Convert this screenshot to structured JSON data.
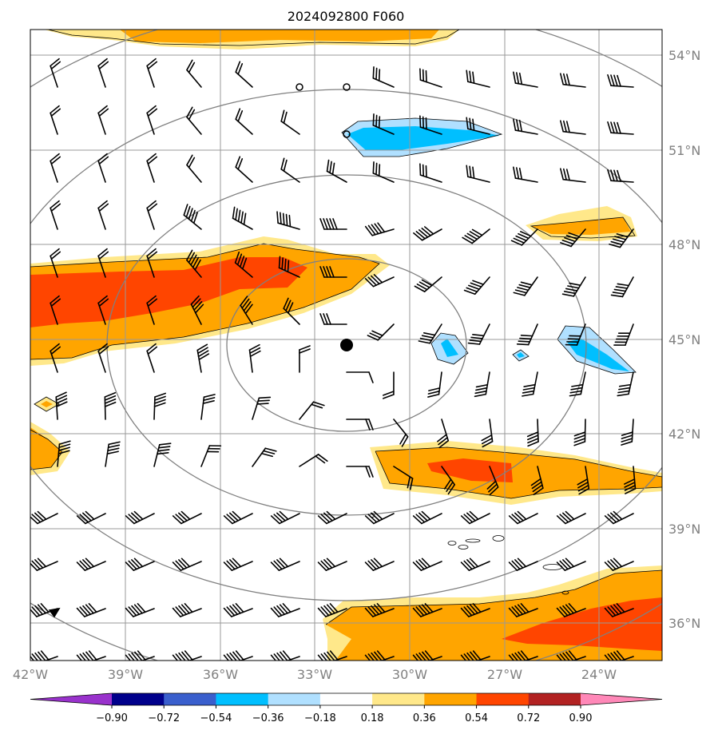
{
  "title": "2024092800 F060",
  "longitude_labels": [
    "42°W",
    "39°W",
    "36°W",
    "33°W",
    "30°W",
    "27°W",
    "24°W"
  ],
  "latitude_labels": [
    "54°N",
    "51°N",
    "48°N",
    "45°N",
    "42°N",
    "39°N",
    "36°N"
  ],
  "colorbar": {
    "tick_labels": [
      "−0.90",
      "−0.72",
      "−0.54",
      "−0.36",
      "−0.18",
      "0.18",
      "0.36",
      "0.54",
      "0.72",
      "0.90"
    ],
    "colors": [
      "#9932cc",
      "#00008b",
      "#3a5fcd",
      "#00bfff",
      "#b0e0ff",
      "#ffffff",
      "#ffe88a",
      "#ffa500",
      "#ff4500",
      "#b22222",
      "#ff88b8"
    ]
  },
  "colors": {
    "positive_1": "#ffe88a",
    "positive_2": "#ffa500",
    "positive_3": "#ff4500",
    "negative_1": "#b0e0ff",
    "negative_2": "#00bfff",
    "gridline": "#999999",
    "range_ring": "#808080"
  },
  "map": {
    "lon_range": [
      -42,
      -22
    ],
    "lat_range": [
      35,
      55
    ],
    "center_marker": {
      "lon": -32,
      "lat": 45
    },
    "ring_center": {
      "lon": -32,
      "lat": 45
    }
  }
}
